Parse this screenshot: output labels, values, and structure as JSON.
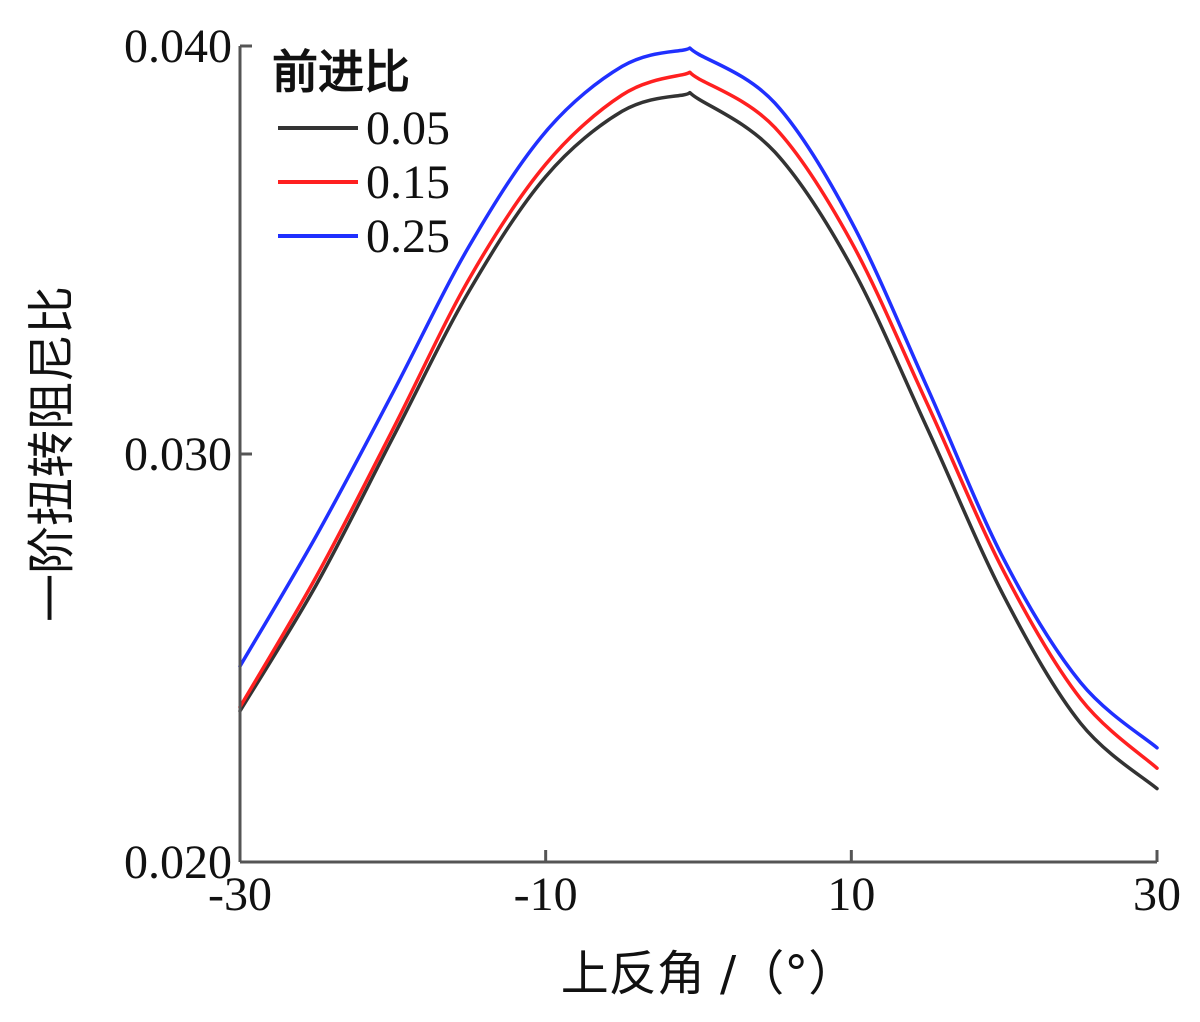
{
  "chart_data": {
    "type": "line",
    "title": "",
    "xlabel": "上反角 /（°）",
    "ylabel": "一阶扭转阻尼比",
    "xlim": [
      -30,
      30
    ],
    "ylim": [
      0.02,
      0.04
    ],
    "x_ticks": [
      -30,
      -10,
      10,
      30
    ],
    "x_tick_labels": [
      "-30",
      "-10",
      "10",
      "30"
    ],
    "y_ticks": [
      0.02,
      0.03,
      0.04
    ],
    "y_tick_labels": [
      "0.020",
      "0.030",
      "0.040"
    ],
    "grid": false,
    "legend": {
      "title": "前进比",
      "placement": "top-left"
    },
    "x": [
      -30,
      -25,
      -20,
      -15,
      -10,
      -5,
      -1,
      0,
      5,
      10,
      15,
      20,
      25,
      30
    ],
    "series": [
      {
        "name": "0.05",
        "color": "#333333",
        "values": [
          0.0237,
          0.0268,
          0.0304,
          0.034,
          0.0368,
          0.0384,
          0.0388,
          0.0387,
          0.0374,
          0.0346,
          0.0306,
          0.0265,
          0.0234,
          0.0218
        ]
      },
      {
        "name": "0.15",
        "color": "#ff2020",
        "values": [
          0.0238,
          0.027,
          0.0306,
          0.0343,
          0.0371,
          0.0388,
          0.0393,
          0.0392,
          0.038,
          0.0352,
          0.0312,
          0.0271,
          0.024,
          0.0223
        ]
      },
      {
        "name": "0.25",
        "color": "#2030ff",
        "values": [
          0.0248,
          0.028,
          0.0315,
          0.0351,
          0.0379,
          0.0395,
          0.0399,
          0.0398,
          0.0386,
          0.0357,
          0.0316,
          0.0274,
          0.0244,
          0.0228
        ]
      }
    ]
  }
}
